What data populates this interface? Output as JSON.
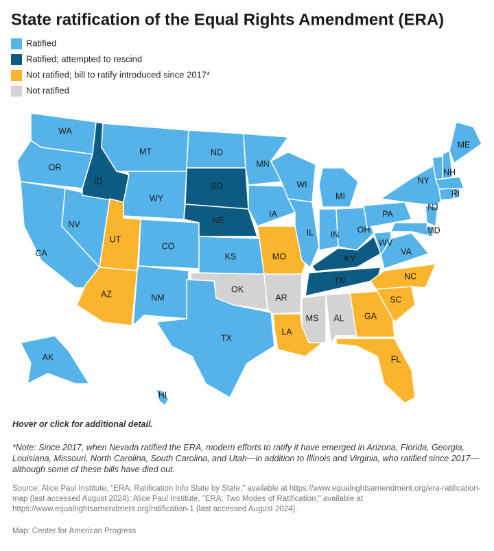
{
  "title": "State ratification of the Equal Rights Amendment (ERA)",
  "legend": [
    {
      "name": "Ratified",
      "color": "#55b3ea"
    },
    {
      "name": "Ratified; attempted to rescind",
      "color": "#0d5b83"
    },
    {
      "name": "Not ratified; bill to ratify introduced since 2017*",
      "color": "#fbb42d"
    },
    {
      "name": "Not ratified",
      "color": "#d3d3d3"
    }
  ],
  "states": [
    {
      "label": "WA",
      "category": 0
    },
    {
      "label": "OR",
      "category": 0
    },
    {
      "label": "CA",
      "category": 0
    },
    {
      "label": "NV",
      "category": 0
    },
    {
      "label": "ID",
      "category": 1
    },
    {
      "label": "MT",
      "category": 0
    },
    {
      "label": "WY",
      "category": 0
    },
    {
      "label": "UT",
      "category": 2
    },
    {
      "label": "AZ",
      "category": 2
    },
    {
      "label": "CO",
      "category": 0
    },
    {
      "label": "NM",
      "category": 0
    },
    {
      "label": "ND",
      "category": 0
    },
    {
      "label": "SD",
      "category": 1
    },
    {
      "label": "NE",
      "category": 1
    },
    {
      "label": "KS",
      "category": 0
    },
    {
      "label": "OK",
      "category": 3
    },
    {
      "label": "TX",
      "category": 0
    },
    {
      "label": "MN",
      "category": 0
    },
    {
      "label": "IA",
      "category": 0
    },
    {
      "label": "MO",
      "category": 2
    },
    {
      "label": "AR",
      "category": 3
    },
    {
      "label": "LA",
      "category": 2
    },
    {
      "label": "WI",
      "category": 0
    },
    {
      "label": "IL",
      "category": 0
    },
    {
      "label": "MI",
      "category": 0
    },
    {
      "label": "IN",
      "category": 0
    },
    {
      "label": "OH",
      "category": 0
    },
    {
      "label": "KY",
      "category": 1
    },
    {
      "label": "TN",
      "category": 1
    },
    {
      "label": "MS",
      "category": 3
    },
    {
      "label": "AL",
      "category": 3
    },
    {
      "label": "GA",
      "category": 2
    },
    {
      "label": "FL",
      "category": 2
    },
    {
      "label": "SC",
      "category": 2
    },
    {
      "label": "NC",
      "category": 2
    },
    {
      "label": "VA",
      "category": 0
    },
    {
      "label": "WV",
      "category": 0
    },
    {
      "label": "PA",
      "category": 0
    },
    {
      "label": "NY",
      "category": 0
    },
    {
      "label": "MD",
      "category": 0
    },
    {
      "label": "NJ",
      "category": 0
    },
    {
      "label": "NH",
      "category": 0
    },
    {
      "label": "ME",
      "category": 0
    },
    {
      "label": null,
      "category": 0
    },
    {
      "label": null,
      "category": 0
    },
    {
      "label": null,
      "category": 0
    },
    {
      "label": "RI",
      "category": 0
    },
    {
      "label": null,
      "category": 0
    },
    {
      "label": "AK",
      "category": 0
    },
    {
      "label": "HI",
      "category": 0
    }
  ],
  "hint": "Hover or click for additional detail.",
  "note": "*Note: Since 2017, when Nevada ratified the ERA, modern efforts to ratify it have emerged in Arizona, Florida, Georgia, Louisiana, Missouri, North Carolina, South Carolina, and Utah—in addition to Illinois and Virginia, who ratified since 2017—although some of these bills have died out.",
  "source": "Source: Alice Paul Institute, \"ERA: Ratification Info State by State,\" available at https://www.equalrightsamendment.org/era-ratification-map (last accessed August 2024); Alice Paul Institute, \"ERA: Two Modes of Ratification,\" available at https://www.equalrightsamendment.org/ratification-1 (last accessed August 2024).",
  "credit": "Map: Center for American Progress"
}
